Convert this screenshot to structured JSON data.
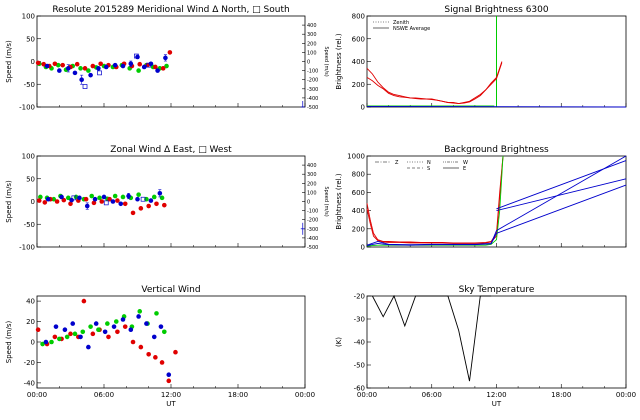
{
  "chart_data": [
    {
      "id": "meridional",
      "type": "scatter",
      "title": "Resolute   2015289      Meridional Wind   Δ North, □ South",
      "ylabel": "Speed (m/s)",
      "ylabel_right": "Speed (m/s)",
      "xlim": [
        0,
        24
      ],
      "ylim": [
        -100,
        100
      ],
      "yticks": [
        -100,
        -50,
        0,
        50,
        100
      ],
      "ylim_right": [
        -500,
        500
      ],
      "yticks_right": [
        -500,
        -400,
        -300,
        -200,
        -100,
        0,
        100,
        200,
        300,
        400
      ],
      "xticks": [
        0,
        6,
        12,
        18,
        24
      ],
      "xtick_labels": [
        "",
        "",
        "",
        "",
        ""
      ],
      "series": [
        {
          "color": "#00cc00",
          "x": [
            0.2,
            0.8,
            1.3,
            1.9,
            2.6,
            3.2,
            3.9,
            4.6,
            5.3,
            6.0,
            6.8,
            7.6,
            8.3,
            9.1,
            9.8,
            10.4,
            11.0,
            11.6
          ],
          "y": [
            -5,
            -12,
            -15,
            -8,
            -18,
            -10,
            -15,
            -20,
            -13,
            -10,
            -12,
            -8,
            -15,
            -20,
            -8,
            -12,
            -15,
            -10
          ]
        },
        {
          "color": "#e00000",
          "x": [
            0.1,
            0.6,
            1.1,
            1.6,
            2.3,
            3.0,
            3.6,
            4.3,
            5.0,
            5.7,
            6.4,
            7.1,
            7.8,
            8.5,
            9.2,
            9.9,
            10.6,
            11.3,
            11.9
          ],
          "y": [
            -3,
            -6,
            -10,
            -5,
            -8,
            -12,
            -6,
            -15,
            -10,
            -5,
            -8,
            -12,
            -5,
            -10,
            -6,
            -8,
            -12,
            -15,
            20
          ]
        },
        {
          "color": "#0000cc",
          "x": [
            0.9,
            2.0,
            2.8,
            3.4,
            4.0,
            4.8,
            5.5,
            6.2,
            7.0,
            7.7,
            8.4,
            9.0,
            9.6,
            10.2,
            10.8,
            11.5
          ],
          "y": [
            -10,
            -20,
            -15,
            -25,
            -40,
            -30,
            -15,
            -12,
            -8,
            -10,
            -5,
            10,
            -12,
            -5,
            -20,
            8
          ]
        }
      ],
      "errorbars_blue": [
        {
          "x": 2.8,
          "y": -15,
          "e": 8
        },
        {
          "x": 4.0,
          "y": -40,
          "e": 10
        },
        {
          "x": 8.4,
          "y": -5,
          "e": 6
        },
        {
          "x": 11.5,
          "y": 8,
          "e": 7
        }
      ],
      "open_squares": [
        {
          "x": 4.3,
          "y": -55
        },
        {
          "x": 5.6,
          "y": -25
        },
        {
          "x": 8.9,
          "y": 12
        },
        {
          "x": 10.0,
          "y": -8
        }
      ],
      "outlier": {
        "x": 23.8,
        "y": -100,
        "e": 8
      }
    },
    {
      "id": "zonal",
      "type": "scatter",
      "title": "Zonal Wind       Δ East, □ West",
      "ylabel": "Speed (m/s)",
      "ylabel_right": "Speed (m/s)",
      "xlim": [
        0,
        24
      ],
      "ylim": [
        -100,
        100
      ],
      "yticks": [
        -100,
        -50,
        0,
        50,
        100
      ],
      "ylim_right": [
        -500,
        500
      ],
      "yticks_right": [
        -500,
        -400,
        -300,
        -200,
        -100,
        0,
        100,
        200,
        300,
        400
      ],
      "xticks": [
        0,
        6,
        12,
        18,
        24
      ],
      "xtick_labels": [
        "",
        "",
        "",
        "",
        ""
      ],
      "series": [
        {
          "color": "#00cc00",
          "x": [
            0.3,
            0.9,
            1.5,
            2.1,
            2.8,
            3.5,
            4.2,
            4.9,
            5.6,
            6.3,
            7.0,
            7.7,
            8.4,
            9.1,
            9.8,
            10.5,
            11.2
          ],
          "y": [
            10,
            8,
            5,
            12,
            8,
            10,
            5,
            12,
            8,
            6,
            12,
            10,
            8,
            15,
            5,
            10,
            8
          ]
        },
        {
          "color": "#e00000",
          "x": [
            0.2,
            0.7,
            1.2,
            1.8,
            2.4,
            3.0,
            3.7,
            4.4,
            5.1,
            5.8,
            6.5,
            7.2,
            7.9,
            8.6,
            9.3,
            10.0,
            10.7,
            11.4
          ],
          "y": [
            2,
            -2,
            5,
            0,
            3,
            -5,
            2,
            5,
            -3,
            0,
            5,
            2,
            -5,
            -25,
            -15,
            -10,
            -5,
            -8
          ]
        },
        {
          "color": "#0000cc",
          "x": [
            1.0,
            2.2,
            3.1,
            3.8,
            4.5,
            5.2,
            6.0,
            6.8,
            7.5,
            8.2,
            9.0,
            10.2,
            11.0
          ],
          "y": [
            5,
            10,
            3,
            8,
            -10,
            5,
            10,
            0,
            -5,
            12,
            5,
            2,
            18
          ]
        }
      ],
      "errorbars_blue": [
        {
          "x": 4.5,
          "y": -10,
          "e": 7
        },
        {
          "x": 8.2,
          "y": 12,
          "e": 6
        },
        {
          "x": 11.0,
          "y": 18,
          "e": 8
        }
      ],
      "open_squares": [
        {
          "x": 3.3,
          "y": 8
        },
        {
          "x": 6.2,
          "y": -3
        },
        {
          "x": 9.5,
          "y": 5
        }
      ],
      "outlier": {
        "x": 23.8,
        "y": -60,
        "e": 10
      }
    },
    {
      "id": "vertical",
      "type": "scatter",
      "title": "Vertical Wind",
      "ylabel": "Speed (m/s)",
      "xlabel": "UT",
      "xlim": [
        0,
        24
      ],
      "ylim": [
        -45,
        45
      ],
      "yticks": [
        -40,
        -20,
        0,
        20,
        40
      ],
      "xticks": [
        0,
        6,
        12,
        18,
        24
      ],
      "xtick_labels": [
        "00:00",
        "06:00",
        "12:00",
        "18:00",
        "00:00"
      ],
      "series": [
        {
          "color": "#e00000",
          "x": [
            0.1,
            0.9,
            1.6,
            2.2,
            3.0,
            3.7,
            4.2,
            5.0,
            5.6,
            6.4,
            7.2,
            7.9,
            8.6,
            9.3,
            10.0,
            10.6,
            11.2,
            11.8,
            12.4
          ],
          "y": [
            12,
            -2,
            5,
            3,
            8,
            5,
            40,
            8,
            12,
            5,
            10,
            15,
            0,
            -5,
            -12,
            -15,
            -20,
            -38,
            -10
          ]
        },
        {
          "color": "#00cc00",
          "x": [
            0.5,
            1.3,
            2.0,
            2.7,
            3.4,
            4.1,
            4.8,
            5.5,
            6.3,
            7.1,
            7.8,
            8.5,
            9.2,
            9.9,
            10.7,
            11.4
          ],
          "y": [
            -2,
            0,
            3,
            5,
            8,
            10,
            15,
            12,
            18,
            20,
            25,
            15,
            30,
            18,
            28,
            10
          ]
        },
        {
          "color": "#0000cc",
          "x": [
            0.8,
            1.7,
            2.5,
            3.2,
            3.9,
            4.6,
            5.3,
            6.1,
            6.9,
            7.7,
            8.4,
            9.1,
            9.8,
            10.5,
            11.1,
            11.8
          ],
          "y": [
            0,
            15,
            12,
            18,
            5,
            -5,
            18,
            10,
            15,
            22,
            12,
            25,
            18,
            5,
            15,
            -32
          ]
        }
      ]
    },
    {
      "id": "signal",
      "type": "line",
      "title": "Signal Brightness          6300",
      "ylabel": "Brightness (rel.)",
      "xlim": [
        0,
        24
      ],
      "ylim": [
        0,
        800
      ],
      "yticks": [
        0,
        200,
        400,
        600,
        800
      ],
      "xticks": [
        0,
        6,
        12,
        18,
        24
      ],
      "xtick_labels": [
        "",
        "",
        "",
        "",
        ""
      ],
      "legend": [
        "Zenith",
        "NSWE Average"
      ],
      "vline": {
        "x": 12.0,
        "color": "#00cc00"
      },
      "series": [
        {
          "color": "#e00000",
          "x": [
            0,
            0.5,
            1,
            1.5,
            2,
            2.5,
            3,
            3.5,
            4,
            4.5,
            5,
            5.5,
            6,
            6.5,
            7,
            7.5,
            8,
            8.5,
            9,
            9.5,
            10,
            10.5,
            11,
            11.5,
            12,
            12.5
          ],
          "y": [
            340,
            290,
            220,
            170,
            130,
            110,
            100,
            90,
            80,
            80,
            75,
            70,
            70,
            60,
            50,
            40,
            40,
            30,
            40,
            50,
            80,
            110,
            150,
            200,
            250,
            390
          ]
        },
        {
          "color": "#e00000",
          "x": [
            0,
            0.5,
            1,
            1.5,
            2,
            2.5,
            3,
            3.5,
            4,
            4.5,
            5,
            5.5,
            6,
            6.5,
            7,
            7.5,
            8,
            8.5,
            9,
            9.5,
            10,
            10.5,
            11,
            11.5,
            12,
            12.5
          ],
          "y": [
            260,
            230,
            190,
            160,
            120,
            100,
            90,
            85,
            80,
            75,
            70,
            70,
            65,
            60,
            50,
            40,
            35,
            30,
            35,
            45,
            70,
            100,
            150,
            210,
            260,
            400
          ]
        },
        {
          "color": "#00cc00",
          "x": [
            0,
            11.8
          ],
          "y": [
            10,
            10
          ]
        },
        {
          "color": "#0000cc",
          "x": [
            0,
            24
          ],
          "y": [
            5,
            0
          ]
        }
      ]
    },
    {
      "id": "background",
      "type": "line",
      "title": "Background Brightness",
      "ylabel": "Brightness (rel.)",
      "xlim": [
        0,
        24
      ],
      "ylim": [
        0,
        1000
      ],
      "yticks": [
        0,
        200,
        400,
        600,
        800,
        1000
      ],
      "xticks": [
        0,
        6,
        12,
        18,
        24
      ],
      "xtick_labels": [
        "",
        "",
        "",
        "",
        ""
      ],
      "legend": [
        "Z",
        "N",
        "S",
        "W",
        "E"
      ],
      "series": [
        {
          "color": "#e00000",
          "x": [
            0,
            0.3,
            0.6,
            1,
            1.5,
            2,
            3,
            4,
            5,
            6,
            7,
            8,
            9,
            10,
            11,
            11.5,
            12,
            12.3,
            12.6
          ],
          "y": [
            480,
            300,
            150,
            80,
            60,
            60,
            55,
            55,
            50,
            50,
            50,
            45,
            45,
            45,
            50,
            60,
            150,
            600,
            1000
          ]
        },
        {
          "color": "#e00000",
          "x": [
            0,
            0.3,
            0.6,
            1,
            1.5,
            2,
            3,
            4,
            5,
            6,
            7,
            8,
            9,
            10,
            11,
            11.5,
            12,
            12.3,
            12.6
          ],
          "y": [
            420,
            260,
            120,
            70,
            55,
            50,
            50,
            45,
            45,
            45,
            45,
            40,
            40,
            40,
            45,
            55,
            120,
            550,
            1000
          ]
        },
        {
          "color": "#00cc00",
          "x": [
            0,
            0.5,
            1,
            1.5,
            2,
            3,
            4,
            5,
            6,
            7,
            8,
            9,
            10,
            11,
            11.5,
            12,
            12.3,
            12.6
          ],
          "y": [
            10,
            15,
            20,
            20,
            20,
            20,
            20,
            20,
            20,
            20,
            20,
            20,
            20,
            20,
            30,
            80,
            400,
            1000
          ]
        },
        {
          "color": "#0000cc",
          "x": [
            0,
            1,
            2,
            4,
            6,
            8,
            10,
            11.5,
            12,
            24
          ],
          "y": [
            20,
            60,
            30,
            25,
            30,
            30,
            30,
            40,
            180,
            1000
          ]
        },
        {
          "color": "#0000cc",
          "x": [
            0,
            1,
            2,
            4,
            6,
            8,
            10,
            11.5,
            12,
            24
          ],
          "y": [
            15,
            40,
            25,
            20,
            25,
            25,
            25,
            35,
            150,
            680
          ]
        },
        {
          "color": "#0000cc",
          "x": [
            12,
            24
          ],
          "y": [
            420,
            950
          ]
        },
        {
          "color": "#0000cc",
          "x": [
            12,
            24
          ],
          "y": [
            400,
            750
          ]
        }
      ]
    },
    {
      "id": "skytemp",
      "type": "line",
      "title": "Sky Temperature",
      "ylabel": "(K)",
      "xlabel": "UT",
      "xlim": [
        0,
        24
      ],
      "ylim": [
        -60,
        -20
      ],
      "yticks": [
        -60,
        -50,
        -40,
        -30,
        -20
      ],
      "xticks": [
        0,
        6,
        12,
        18,
        24
      ],
      "xtick_labels": [
        "00:00",
        "06:00",
        "12:00",
        "18:00",
        "00:00"
      ],
      "series": [
        {
          "color": "#000000",
          "x": [
            0.5,
            1.5,
            2.5,
            3.5,
            4.5,
            5.5,
            6.5,
            7.5,
            8.5,
            9.5,
            10.5,
            11.5
          ],
          "y": [
            -20,
            -29,
            -20,
            -33,
            -20,
            -20,
            -20,
            -20,
            -35,
            -57,
            -20,
            -20
          ]
        }
      ]
    }
  ]
}
